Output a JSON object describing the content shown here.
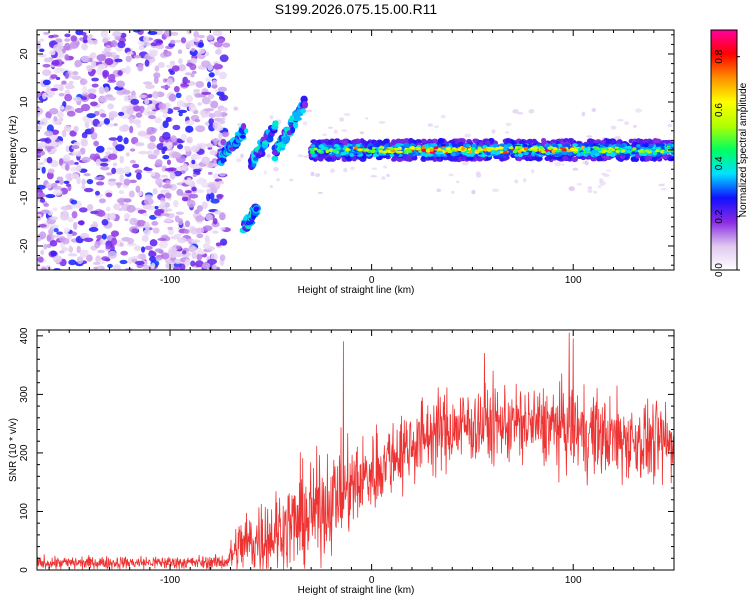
{
  "title": "S199.2026.075.15.00.R11",
  "chart_data": [
    {
      "type": "heatmap",
      "name": "spectrogram",
      "xlabel": "Height of straight line (km)",
      "ylabel": "Frequency (Hz)",
      "xlim": [
        -166,
        150
      ],
      "ylim": [
        -25,
        25
      ],
      "xticks": [
        -100,
        0,
        100
      ],
      "yticks": [
        -20,
        -10,
        0,
        10,
        20
      ],
      "xtick_labels": [
        "-100",
        "0",
        "100"
      ],
      "ytick_labels": [
        "-20",
        "-10",
        "0",
        "10",
        "20"
      ],
      "colorbar": {
        "label": "Normalized spectral amplitude",
        "range": [
          0.0,
          0.9
        ],
        "ticks": [
          0.0,
          0.2,
          0.4,
          0.6,
          0.8
        ],
        "tick_labels": [
          "0.0",
          "0.2",
          "0.4",
          "0.6",
          "0.8"
        ],
        "colormap": [
          "#ffffff",
          "#e0c8f0",
          "#8a2be2",
          "#1010ff",
          "#00e0ff",
          "#00ff60",
          "#b0ff00",
          "#ffff00",
          "#ff9000",
          "#ff0000",
          "#ff00a0"
        ]
      },
      "features": {
        "noise_region_x": [
          -166,
          -80
        ],
        "signal_line_x": [
          -30,
          150
        ],
        "signal_line_freq": 0,
        "transition_segments": [
          {
            "x": [
              -75,
              -63
            ],
            "freq_start": -2,
            "freq_end": 4
          },
          {
            "x": [
              -60,
              -48
            ],
            "freq_start": -3,
            "freq_end": 5
          },
          {
            "x": [
              -48,
              -33
            ],
            "freq_start": -1,
            "freq_end": 10
          },
          {
            "x": [
              -63,
              -57
            ],
            "freq_start": -16,
            "freq_end": -12
          }
        ]
      }
    },
    {
      "type": "line",
      "name": "snr",
      "xlabel": "Height of straight line (km)",
      "ylabel": "SNR (10 * v/v)",
      "xlim": [
        -166,
        150
      ],
      "ylim": [
        0,
        410
      ],
      "xticks": [
        -100,
        0,
        100
      ],
      "yticks": [
        0,
        100,
        200,
        300,
        400
      ],
      "xtick_labels": [
        "-100",
        "0",
        "100"
      ],
      "ytick_labels": [
        "0",
        "100",
        "200",
        "300",
        "400"
      ],
      "color": "#ee3333",
      "envelope": {
        "x": [
          -166,
          -80,
          -72,
          -66,
          -55,
          -40,
          -30,
          -20,
          -10,
          0,
          10,
          20,
          30,
          50,
          70,
          90,
          100,
          120,
          150
        ],
        "mean": [
          12,
          13,
          14,
          40,
          55,
          75,
          95,
          120,
          140,
          165,
          195,
          215,
          235,
          248,
          250,
          245,
          240,
          225,
          215
        ],
        "amp": [
          10,
          10,
          12,
          45,
          60,
          75,
          80,
          75,
          70,
          65,
          60,
          60,
          60,
          60,
          60,
          60,
          65,
          65,
          60
        ]
      },
      "peaks": [
        {
          "x": -14,
          "y": 390
        },
        {
          "x": 98,
          "y": 405
        },
        {
          "x": 100,
          "y": 395
        },
        {
          "x": 56,
          "y": 370
        }
      ]
    }
  ]
}
